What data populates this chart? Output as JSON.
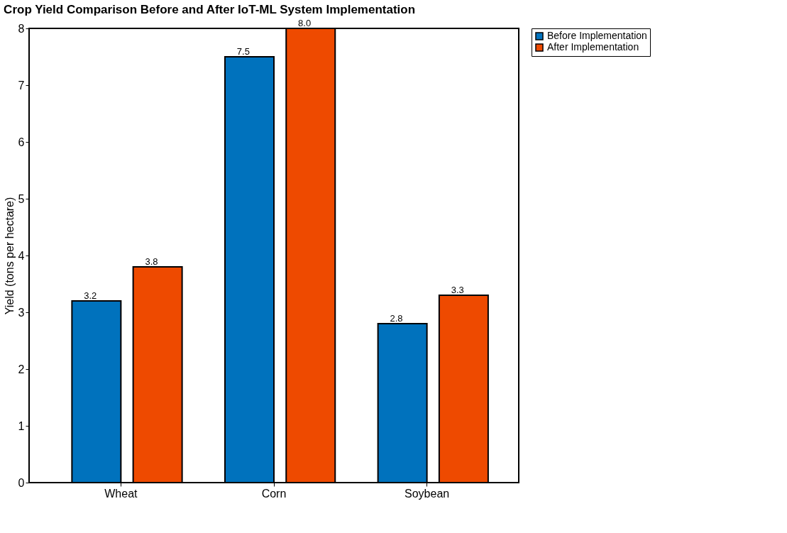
{
  "chart_data": {
    "type": "bar",
    "title": "Crop Yield Comparison Before and After IoT-ML System Implementation",
    "ylabel": "Yield (tons per hectare)",
    "categories": [
      "Wheat",
      "Corn",
      "Soybean"
    ],
    "series": [
      {
        "name": "Before Implementation",
        "color": "#0072bd",
        "values": [
          3.2,
          7.5,
          2.8
        ],
        "value_labels": [
          "3.2",
          "7.5",
          "2.8"
        ]
      },
      {
        "name": "After Implementation",
        "color": "#ee4a00",
        "values": [
          3.8,
          8.0,
          3.3
        ],
        "value_labels": [
          "3.8",
          "8.0",
          "3.3"
        ]
      }
    ],
    "ylim": [
      0,
      8
    ],
    "yticks": [
      0,
      1,
      2,
      3,
      4,
      5,
      6,
      7,
      8
    ],
    "grid": false,
    "legend": "top right"
  }
}
